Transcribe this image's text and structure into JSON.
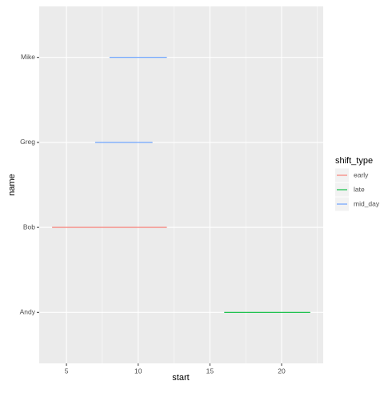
{
  "chart_data": {
    "type": "segment",
    "x_label": "start",
    "y_label": "name",
    "categories": [
      "Andy",
      "Bob",
      "Greg",
      "Mike"
    ],
    "legend_title": "shift_type",
    "series": [
      {
        "name": "early",
        "color": "#F8766D",
        "start": [
          null,
          4,
          null,
          null
        ],
        "end": [
          null,
          12,
          null,
          null
        ]
      },
      {
        "name": "late",
        "color": "#00BA38",
        "start": [
          16,
          null,
          null,
          null
        ],
        "end": [
          22,
          null,
          null,
          null
        ]
      },
      {
        "name": "mid_day",
        "color": "#619CFF",
        "start": [
          null,
          null,
          7,
          8
        ],
        "end": [
          null,
          null,
          11,
          12
        ]
      }
    ],
    "xlim": [
      3.1,
      22.9
    ],
    "xticks": [
      5,
      10,
      15,
      20
    ],
    "x_minor_ticks": [
      7.5,
      12.5,
      17.5,
      22.5
    ],
    "grid": true,
    "legend_position": "right"
  }
}
